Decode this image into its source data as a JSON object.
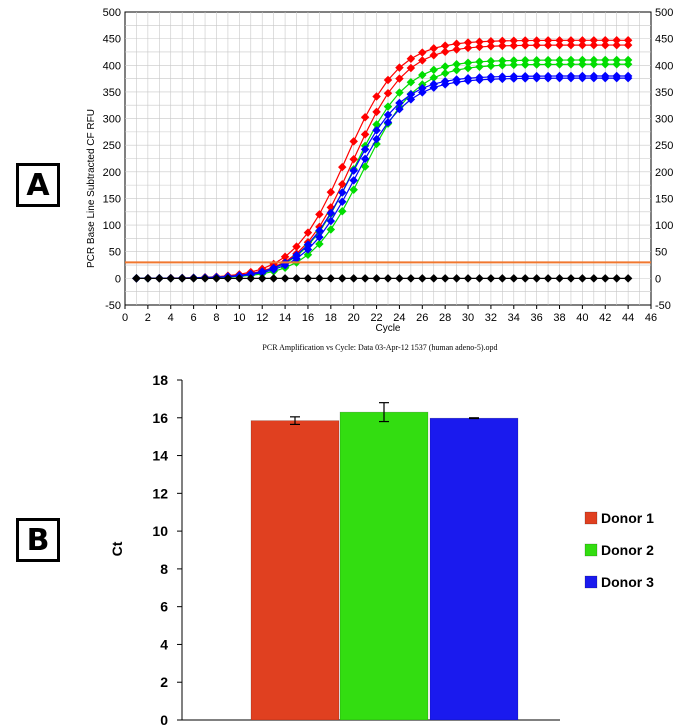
{
  "panels": {
    "a_label": "A",
    "b_label": "B"
  },
  "chart_data": [
    {
      "type": "line",
      "xlabel": "Cycle",
      "ylabel": "PCR Base Line Subtracted CF RFU",
      "caption": "PCR Amplification vs Cycle: Data 03-Apr-12 1537 (human adeno-5).opd",
      "xlim": [
        0,
        46
      ],
      "ylim": [
        -50,
        500
      ],
      "xticks": [
        0,
        2,
        4,
        6,
        8,
        10,
        12,
        14,
        16,
        18,
        20,
        22,
        24,
        26,
        28,
        30,
        32,
        34,
        36,
        38,
        40,
        42,
        44,
        46
      ],
      "yticks": [
        -50,
        0,
        50,
        100,
        150,
        200,
        250,
        300,
        350,
        400,
        450,
        500
      ],
      "grid": true,
      "threshold": {
        "value": 30,
        "color": "#f07830"
      },
      "curve_model": {
        "model": "sigmoid"
      },
      "series": [
        {
          "color": "#ff0000",
          "plateau": 447,
          "midpoint": 19.3,
          "slope": 2.3
        },
        {
          "color": "#ff0000",
          "plateau": 438,
          "midpoint": 19.9,
          "slope": 2.3
        },
        {
          "color": "#00dd00",
          "plateau": 410,
          "midpoint": 20.0,
          "slope": 2.3
        },
        {
          "color": "#00dd00",
          "plateau": 402,
          "midpoint": 20.8,
          "slope": 2.3
        },
        {
          "color": "#0000ff",
          "plateau": 380,
          "midpoint": 19.7,
          "slope": 2.3
        },
        {
          "color": "#0000ff",
          "plateau": 376,
          "midpoint": 20.1,
          "slope": 2.3
        },
        {
          "color": "#000000",
          "plateau": 0,
          "midpoint": 20,
          "slope": 2.3
        }
      ]
    },
    {
      "type": "bar",
      "ylabel": "Ct",
      "ylim": [
        0,
        18
      ],
      "yticks": [
        0,
        2,
        4,
        6,
        8,
        10,
        12,
        14,
        16,
        18
      ],
      "categories": [
        "Donor 1",
        "Donor 2",
        "Donor 3"
      ],
      "values": [
        15.85,
        16.3,
        15.98
      ],
      "errors": [
        0.2,
        0.5,
        0.02
      ],
      "colors": [
        "#e04020",
        "#33dd11",
        "#1a1aee"
      ],
      "legend": [
        "Donor 1",
        "Donor 2",
        "Donor 3"
      ],
      "legend_position": "right"
    }
  ]
}
